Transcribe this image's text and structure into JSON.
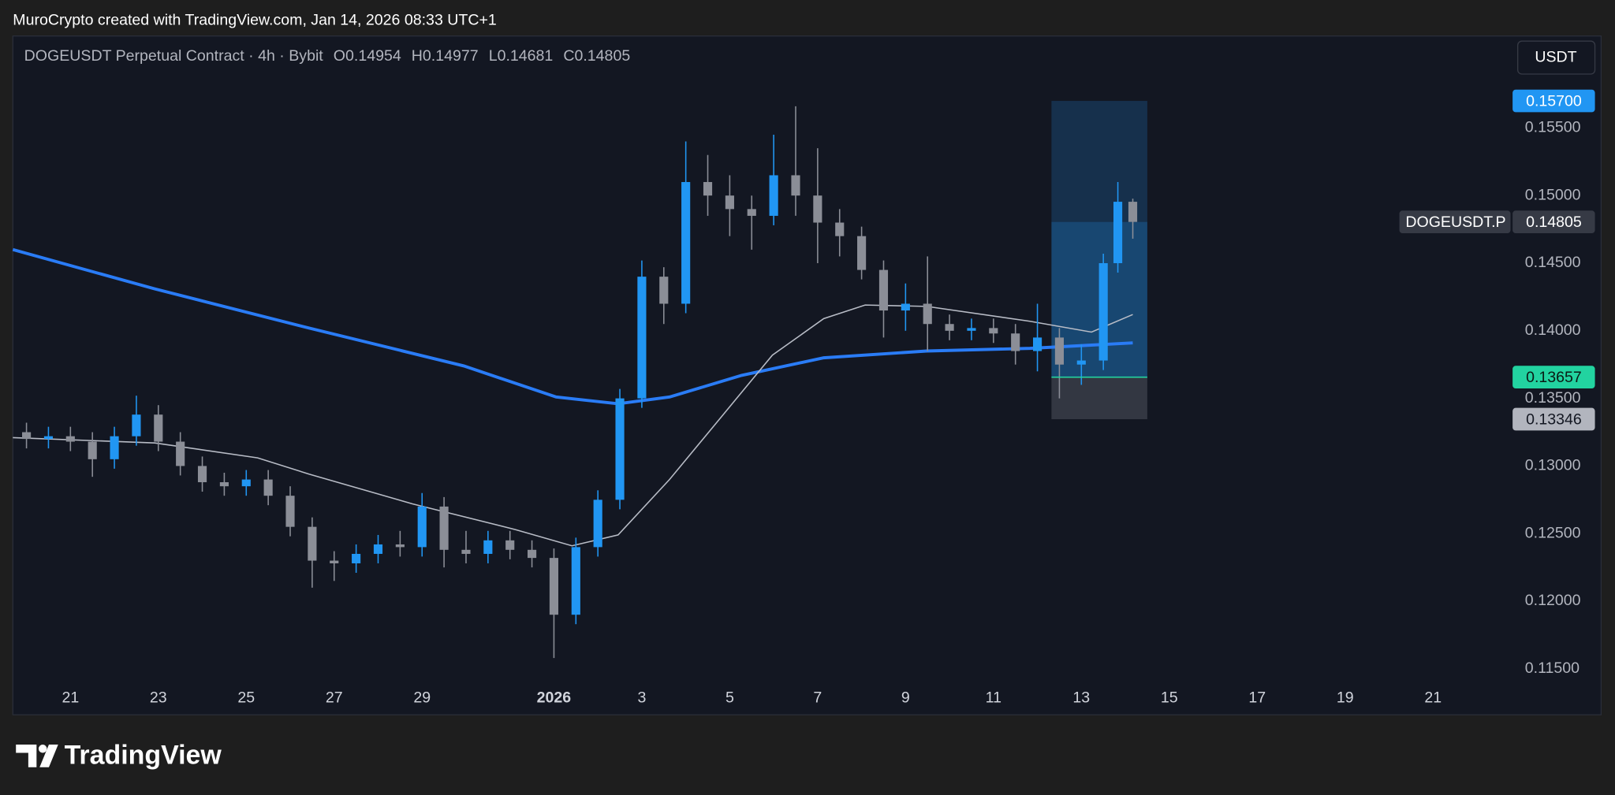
{
  "header": {
    "attribution": "MuroCrypto created with TradingView.com, Jan 14, 2026 08:33 UTC+1"
  },
  "chart_data": {
    "type": "candlestick",
    "legend": {
      "symbol": "DOGEUSDT Perpetual Contract · 4h · Bybit",
      "ohlc": [
        {
          "label": "O",
          "value": 0.14954
        },
        {
          "label": "H",
          "value": 0.14977
        },
        {
          "label": "L",
          "value": 0.14681
        },
        {
          "label": "C",
          "value": 0.14805
        }
      ]
    },
    "currency_button": "USDT",
    "up_color": "#2196f3",
    "down_color": "#8b8e97",
    "x": [
      -1,
      -0.5,
      0,
      0.5,
      1,
      1.5,
      2,
      2.5,
      3,
      3.5,
      4,
      4.5,
      5,
      5.5,
      6,
      6.5,
      7,
      7.5,
      8,
      8.5,
      9,
      9.5,
      10,
      10.5,
      11,
      11.5,
      12,
      12.5,
      13,
      13.5,
      14,
      14.5,
      15,
      15.5,
      16,
      16.5,
      17,
      17.5,
      18,
      18.5,
      19,
      19.5,
      20,
      20.5,
      21,
      21.5,
      22,
      22.5,
      23,
      23.5,
      23.83,
      24.17
    ],
    "open": [
      0.1325,
      0.132,
      0.1322,
      0.1318,
      0.1305,
      0.1322,
      0.1338,
      0.1318,
      0.13,
      0.1288,
      0.1285,
      0.129,
      0.1278,
      0.1255,
      0.123,
      0.1228,
      0.1235,
      0.1242,
      0.124,
      0.127,
      0.1238,
      0.1235,
      0.1245,
      0.1238,
      0.1232,
      0.119,
      0.124,
      0.1275,
      0.135,
      0.144,
      0.142,
      0.151,
      0.15,
      0.149,
      0.1485,
      0.1515,
      0.15,
      0.148,
      0.147,
      0.1445,
      0.1415,
      0.142,
      0.1405,
      0.14,
      0.1402,
      0.1398,
      0.1385,
      0.1395,
      0.1375,
      0.1378,
      0.145,
      0.14954
    ],
    "high": [
      0.1332,
      0.1329,
      0.1329,
      0.1325,
      0.1329,
      0.1352,
      0.1345,
      0.1325,
      0.1307,
      0.1295,
      0.1297,
      0.1297,
      0.1285,
      0.1262,
      0.1237,
      0.1242,
      0.1249,
      0.1252,
      0.128,
      0.1277,
      0.1252,
      0.1252,
      0.1252,
      0.1245,
      0.1239,
      0.1247,
      0.1282,
      0.1357,
      0.1452,
      0.1447,
      0.154,
      0.153,
      0.1515,
      0.15,
      0.1545,
      0.1566,
      0.1535,
      0.149,
      0.1477,
      0.1452,
      0.1435,
      0.1455,
      0.1412,
      0.1409,
      0.1409,
      0.1405,
      0.142,
      0.1402,
      0.139,
      0.1457,
      0.151,
      0.14977
    ],
    "low": [
      0.1313,
      0.1313,
      0.1311,
      0.1292,
      0.1298,
      0.1315,
      0.1311,
      0.1293,
      0.1281,
      0.1278,
      0.1278,
      0.1271,
      0.1248,
      0.121,
      0.1215,
      0.1221,
      0.1228,
      0.1233,
      0.1233,
      0.1225,
      0.1228,
      0.1228,
      0.1231,
      0.1225,
      0.1158,
      0.1183,
      0.1233,
      0.1268,
      0.1343,
      0.1405,
      0.1413,
      0.1485,
      0.147,
      0.146,
      0.1478,
      0.1485,
      0.145,
      0.1455,
      0.1438,
      0.1395,
      0.14,
      0.1385,
      0.1393,
      0.1393,
      0.1391,
      0.1375,
      0.137,
      0.135,
      0.136,
      0.1371,
      0.1443,
      0.14681
    ],
    "close": [
      0.132,
      0.1322,
      0.1318,
      0.1305,
      0.1322,
      0.1338,
      0.1318,
      0.13,
      0.1288,
      0.1285,
      0.129,
      0.1278,
      0.1255,
      0.123,
      0.1228,
      0.1235,
      0.1242,
      0.124,
      0.127,
      0.1238,
      0.1235,
      0.1245,
      0.1238,
      0.1232,
      0.119,
      0.124,
      0.1275,
      0.135,
      0.144,
      0.142,
      0.151,
      0.15,
      0.149,
      0.1485,
      0.1515,
      0.15,
      0.148,
      0.147,
      0.1445,
      0.1415,
      0.142,
      0.1405,
      0.14,
      0.1402,
      0.1398,
      0.1385,
      0.1395,
      0.1375,
      0.1378,
      0.145,
      0.14954,
      0.14805
    ],
    "lines": [
      {
        "color": "#2a7cf6",
        "x": [
          -1.31,
          1.92,
          5.43,
          8.95,
          11.05,
          12.46,
          13.63,
          15.27,
          17.14,
          19.48,
          21.83,
          24.17
        ],
        "values": [
          0.146,
          0.1431,
          0.1402,
          0.1374,
          0.1351,
          0.1346,
          0.1351,
          0.1367,
          0.138,
          0.1385,
          0.1387,
          0.1391
        ]
      },
      {
        "color": "#b8bcc6",
        "x": [
          -1.31,
          1.92,
          4.26,
          5.43,
          7.78,
          10.12,
          11.41,
          12.46,
          13.63,
          14.8,
          15.97,
          17.14,
          18.08,
          19.48,
          21.83,
          23.23,
          24.17
        ],
        "values": [
          0.1321,
          0.1317,
          0.1306,
          0.1294,
          0.1272,
          0.1253,
          0.1241,
          0.1249,
          0.129,
          0.1336,
          0.1382,
          0.1409,
          0.1419,
          0.1418,
          0.1407,
          0.1399,
          0.1412
        ]
      }
    ],
    "position": {
      "x_range": [
        22.32,
        24.5
      ],
      "target": {
        "value": 0.157,
        "label": "0.15700"
      },
      "entry": 0.13657,
      "stop": 0.13346
    },
    "current_price": {
      "symbol": "DOGEUSDT.P",
      "value": 0.14805
    },
    "xlim": [
      -1.31,
      32.6
    ],
    "xticks": [
      {
        "value": 0,
        "label": "21"
      },
      {
        "value": 2,
        "label": "23"
      },
      {
        "value": 4,
        "label": "25"
      },
      {
        "value": 6,
        "label": "27"
      },
      {
        "value": 8,
        "label": "29"
      },
      {
        "value": 11,
        "label": "2026"
      },
      {
        "value": 13,
        "label": "3"
      },
      {
        "value": 15,
        "label": "5"
      },
      {
        "value": 17,
        "label": "7"
      },
      {
        "value": 19,
        "label": "9"
      },
      {
        "value": 21,
        "label": "11"
      },
      {
        "value": 23,
        "label": "13"
      },
      {
        "value": 25,
        "label": "15"
      },
      {
        "value": 27,
        "label": "17"
      },
      {
        "value": 29,
        "label": "19"
      },
      {
        "value": 31,
        "label": "21"
      }
    ],
    "ylim": [
      0.1116,
      0.1618
    ],
    "yticks": [
      {
        "value": 0.155,
        "label": "0.15500"
      },
      {
        "value": 0.15,
        "label": "0.15000"
      },
      {
        "value": 0.145,
        "label": "0.14500"
      },
      {
        "value": 0.14,
        "label": "0.14000"
      },
      {
        "value": 0.135,
        "label": "0.13500"
      },
      {
        "value": 0.13,
        "label": "0.13000"
      },
      {
        "value": 0.125,
        "label": "0.12500"
      },
      {
        "value": 0.12,
        "label": "0.12000"
      },
      {
        "value": 0.115,
        "label": "0.11500"
      }
    ],
    "grid": false
  },
  "footer": {
    "logo": "TradingView"
  }
}
